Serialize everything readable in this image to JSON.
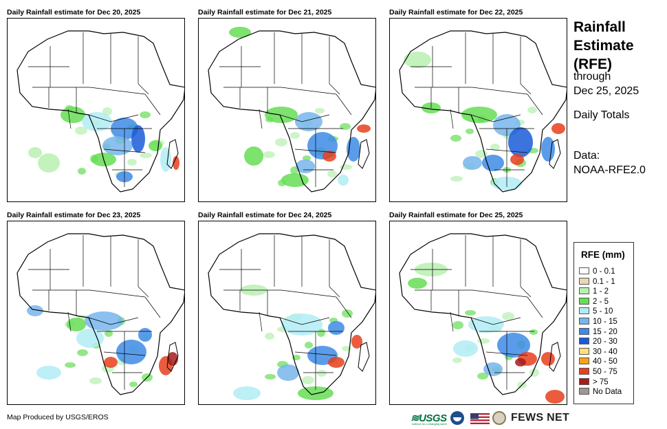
{
  "panels": [
    {
      "title": "Daily Rainfall estimate for Dec 20, 2025"
    },
    {
      "title": "Daily Rainfall estimate for Dec 21, 2025"
    },
    {
      "title": "Daily Rainfall estimate for Dec 22, 2025"
    },
    {
      "title": "Daily Rainfall estimate for Dec 23, 2025"
    },
    {
      "title": "Daily Rainfall estimate for Dec 24, 2025"
    },
    {
      "title": "Daily Rainfall estimate for Dec 25, 2025"
    }
  ],
  "side": {
    "title_line1": "Rainfall",
    "title_line2": "Estimate",
    "title_line3": "(RFE)",
    "through": "through",
    "date": "Dec 25, 2025",
    "totals": "Daily Totals",
    "data_label": "Data:",
    "data_source": "NOAA-RFE2.0"
  },
  "legend": {
    "title": "RFE (mm)",
    "items": [
      {
        "label": "0 - 0.1",
        "color": "#ffffff"
      },
      {
        "label": "0.1 - 1",
        "color": "#e8d6b6"
      },
      {
        "label": "1 - 2",
        "color": "#b8f0b0"
      },
      {
        "label": "2 - 5",
        "color": "#66dd55"
      },
      {
        "label": "5 - 10",
        "color": "#b0ecf5"
      },
      {
        "label": "10 - 15",
        "color": "#77b5ec"
      },
      {
        "label": "15 - 20",
        "color": "#3d8be6"
      },
      {
        "label": "20 - 30",
        "color": "#1a5cd8"
      },
      {
        "label": "30 - 40",
        "color": "#fde07a"
      },
      {
        "label": "40 - 50",
        "color": "#f5a21b"
      },
      {
        "label": "50 - 75",
        "color": "#e8401c"
      },
      {
        "label": "> 75",
        "color": "#a51c1c"
      },
      {
        "label": "No Data",
        "color": "#9a9a9a"
      }
    ]
  },
  "footer": {
    "credit": "Map Produced by USGS/EROS",
    "usgs": "≋USGS",
    "usgs_tagline": "science for a changing world",
    "fews": "FEWS NET"
  }
}
